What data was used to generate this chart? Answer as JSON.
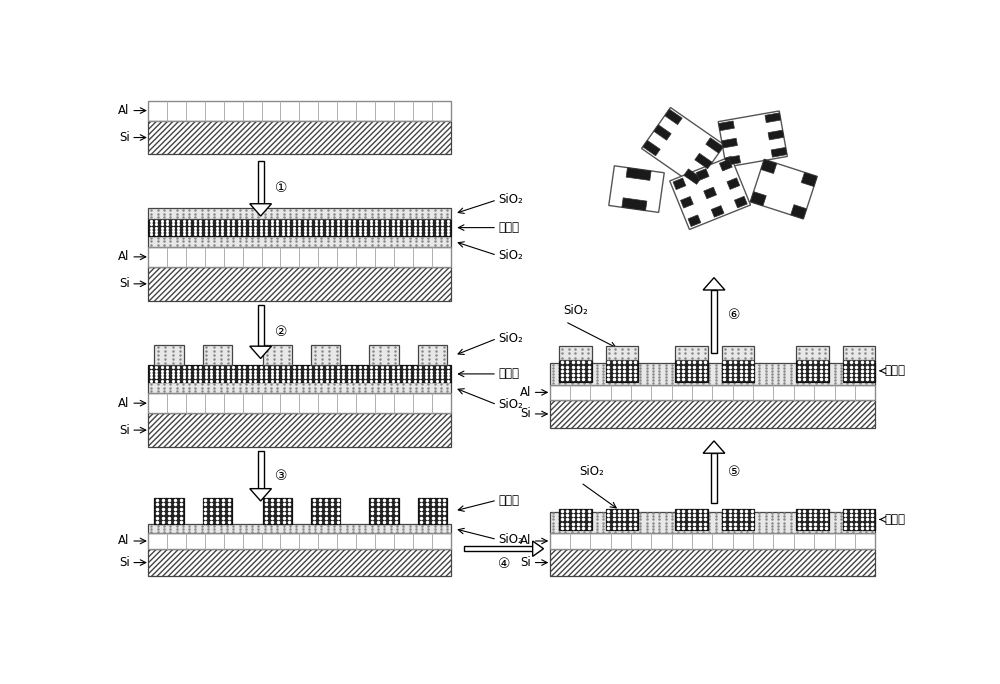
{
  "bg_color": "#ffffff",
  "text_color": "#000000",
  "step_numbers": [
    "①",
    "②",
    "③",
    "④",
    "⑤",
    "⑥"
  ],
  "labels": {
    "Al": "Al",
    "Si": "Si",
    "SiO2": "SiO₂",
    "magnetic": "磁流体"
  },
  "fig_w": 10.0,
  "fig_h": 6.84,
  "dpi": 100
}
